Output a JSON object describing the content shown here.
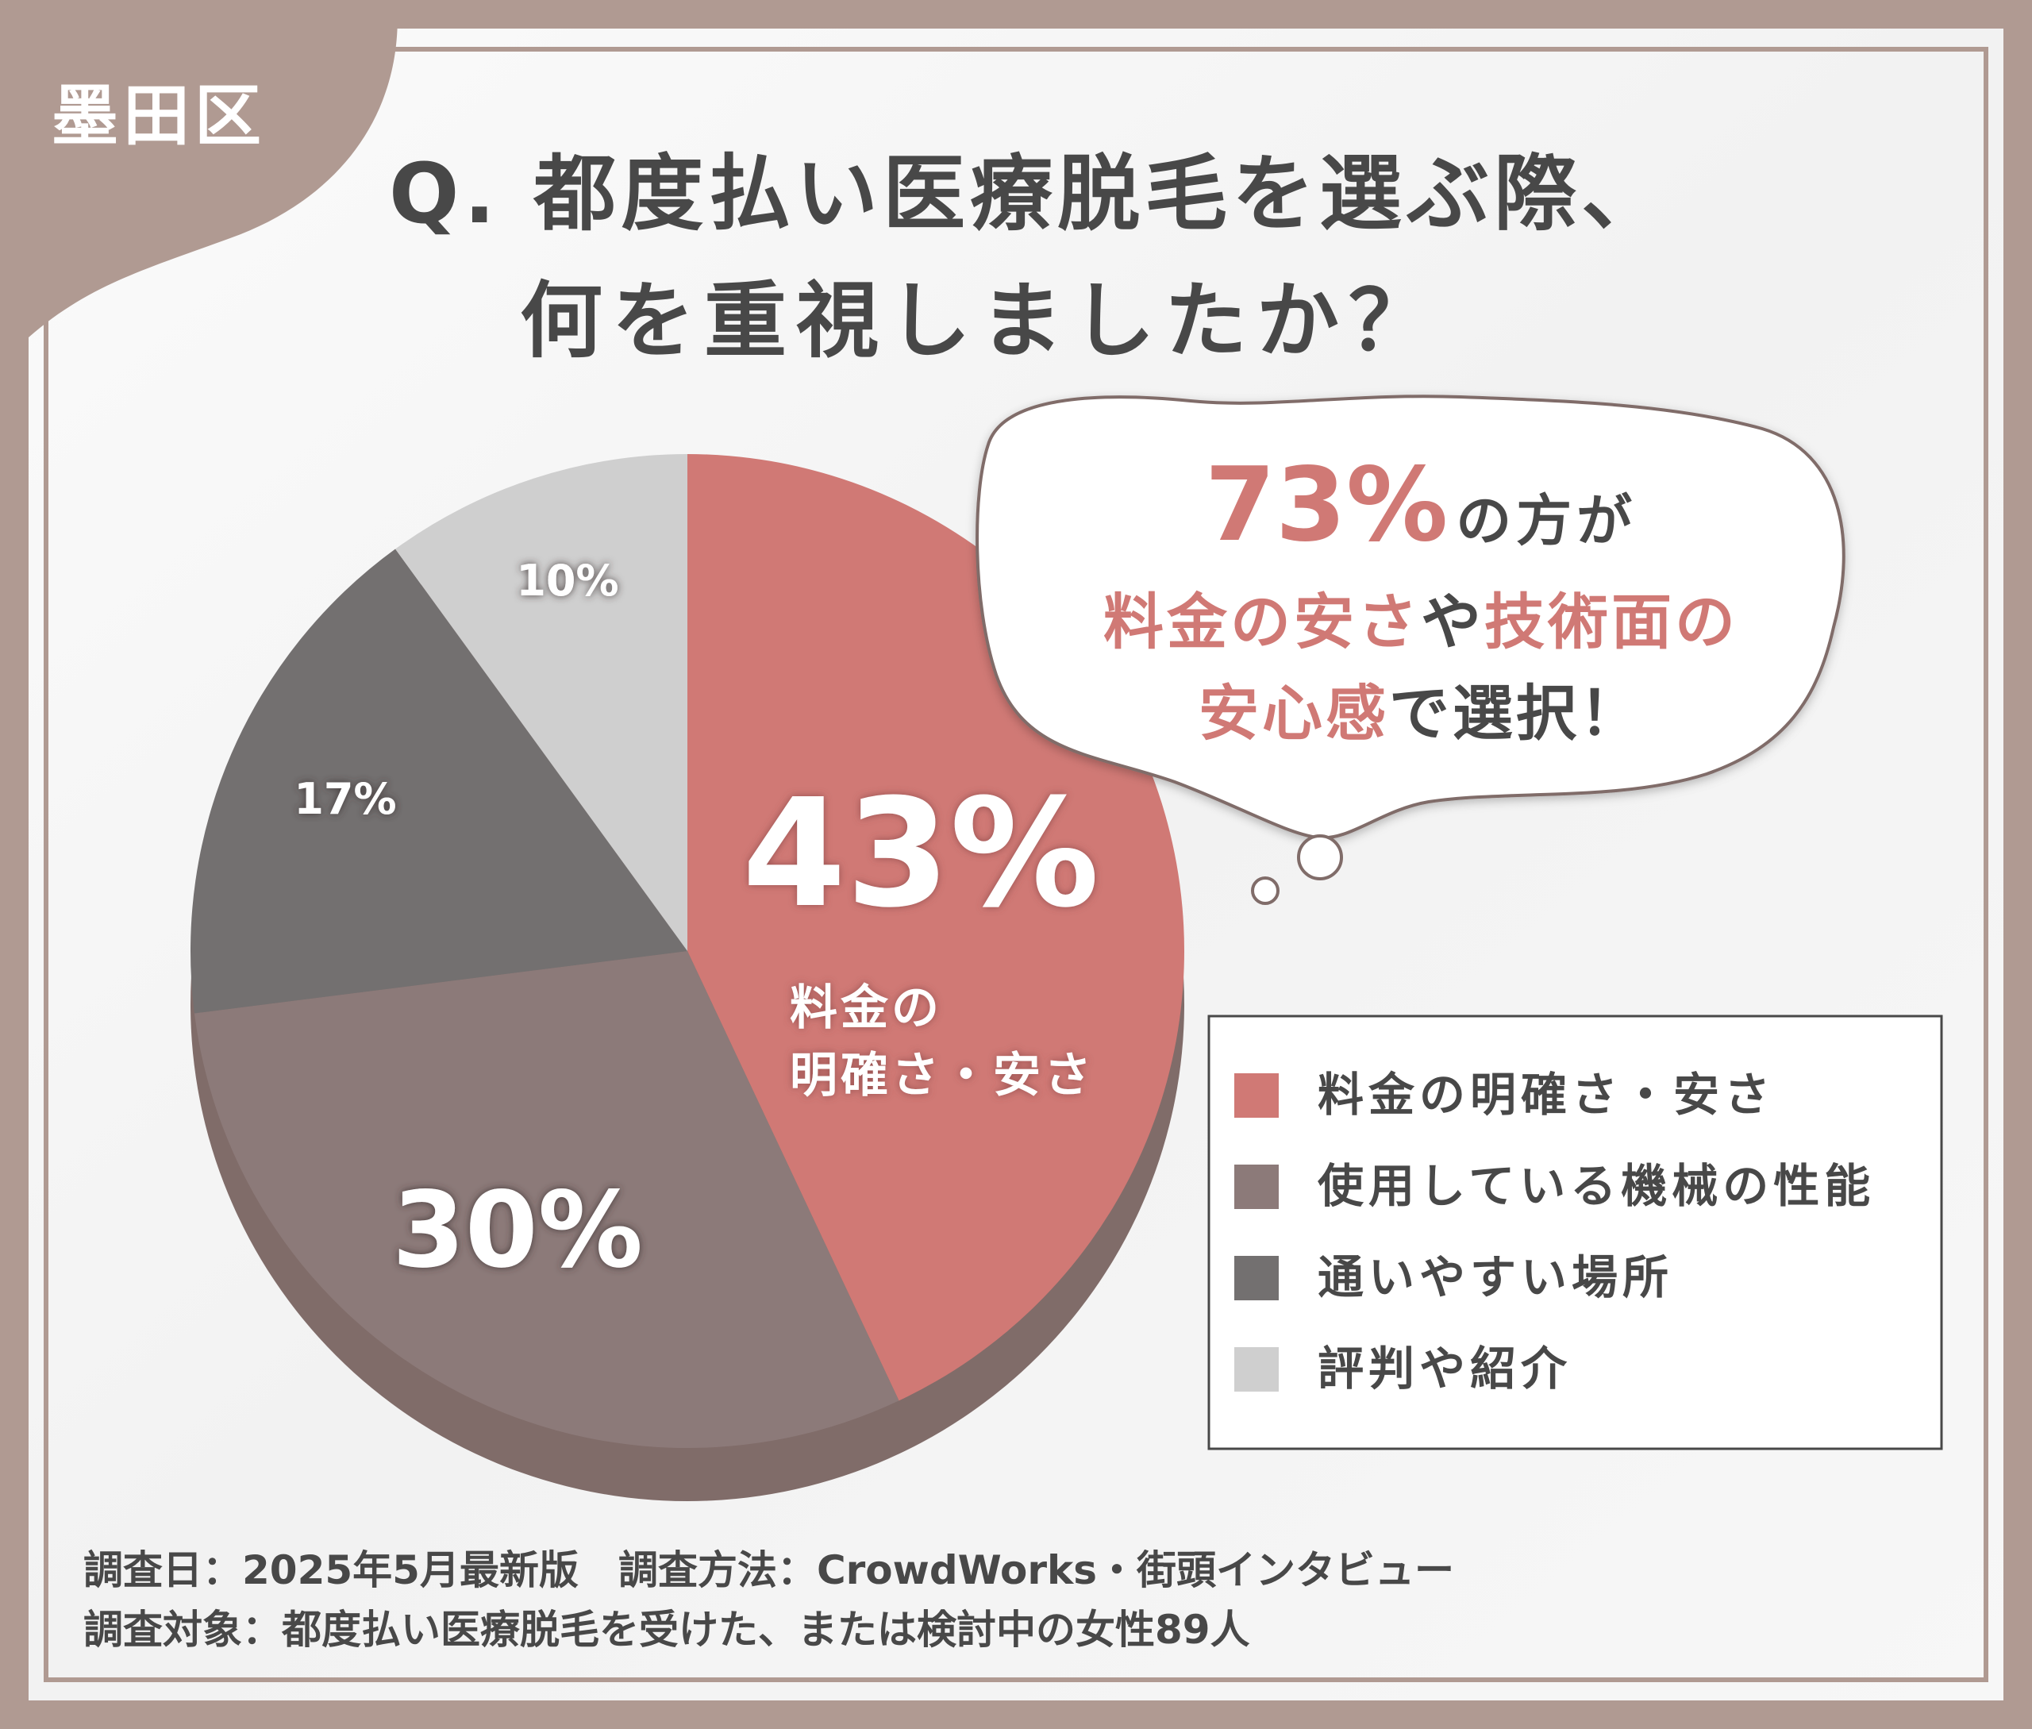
{
  "badge": {
    "label": "墨田区"
  },
  "question": {
    "line1": "Q. 都度払い医療脱毛を選ぶ際、",
    "line2": "何を重視しましたか？"
  },
  "callout": {
    "pct": "73%",
    "line1_suffix": "の方が",
    "line2_a": "料金の安さ",
    "line2_b": "や",
    "line2_c": "技術面の",
    "line3_a": "安心感",
    "line3_b": "で選択！"
  },
  "slice_labels": {
    "s0_pct": "43%",
    "s0_label_line1": "料金の",
    "s0_label_line2": "明確さ・安さ",
    "s1_pct": "30%",
    "s2_pct": "17%",
    "s3_pct": "10%"
  },
  "chart_data": {
    "type": "pie",
    "categories": [
      "料金の明確さ・安さ",
      "使用している機械の性能",
      "通いやすい場所",
      "評判や紹介"
    ],
    "values": [
      43,
      30,
      17,
      10
    ],
    "unit": "%",
    "colors": [
      "#d07975",
      "#8c7a79",
      "#737070",
      "#cfcfcf"
    ],
    "legend_position": "right"
  },
  "footer": {
    "line1": "調査日：2025年5月最新版　調査方法：CrowdWorks・街頭インタビュー",
    "line2": "調査対象：都度払い医療脱毛を受けた、または検討中の女性89人"
  },
  "colors": {
    "frame": "#b09a92",
    "accent": "#d07975",
    "text_dark": "#484848",
    "pie_shadow": "#806c69"
  }
}
